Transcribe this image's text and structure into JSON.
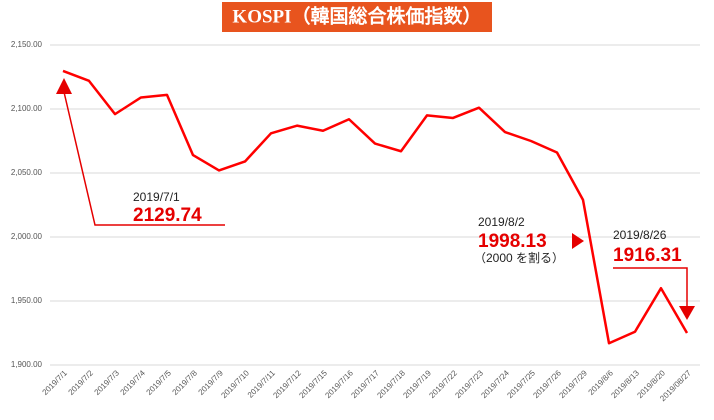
{
  "chart_data": {
    "type": "line",
    "title": "KOSPI（韓国総合株価指数）",
    "categories": [
      "2019/7/1",
      "2019/7/2",
      "2019/7/3",
      "2019/7/4",
      "2019/7/5",
      "2019/7/8",
      "2019/7/9",
      "2019/7/10",
      "2019/7/11",
      "2019/7/12",
      "2019/7/15",
      "2019/7/16",
      "2019/7/17",
      "2019/7/18",
      "2019/7/19",
      "2019/7/22",
      "2019/7/23",
      "2019/7/24",
      "2019/7/25",
      "2019/7/26",
      "2019/7/29",
      "2019/8/6",
      "2019/8/13",
      "2019/8/20",
      "2019/08/27"
    ],
    "series": [
      {
        "name": "KOSPI",
        "color": "#ff0000",
        "values": [
          2129.74,
          2122,
          2096,
          2109,
          2111,
          2064,
          2052,
          2059,
          2081,
          2087,
          2083,
          2092,
          2073,
          2067,
          2095,
          2093,
          2101,
          2082,
          2075,
          2066,
          2029,
          1917,
          1926,
          1960,
          1925
        ]
      }
    ],
    "ylim": [
      1900,
      2150
    ],
    "yticks": [
      {
        "value": 1900,
        "label": "1,900.00"
      },
      {
        "value": 1950,
        "label": "1,950.00"
      },
      {
        "value": 2000,
        "label": "2,000.00"
      },
      {
        "value": 2050,
        "label": "2,050.00"
      },
      {
        "value": 2100,
        "label": "2,100.00"
      },
      {
        "value": 2150,
        "label": "2,150.00"
      }
    ],
    "grid": true,
    "annotations": [
      "2019/7/1",
      "2129.74",
      "2019/8/2",
      "1998.13",
      "（2000 を割る）",
      "2019/8/26",
      "1916.31"
    ]
  }
}
